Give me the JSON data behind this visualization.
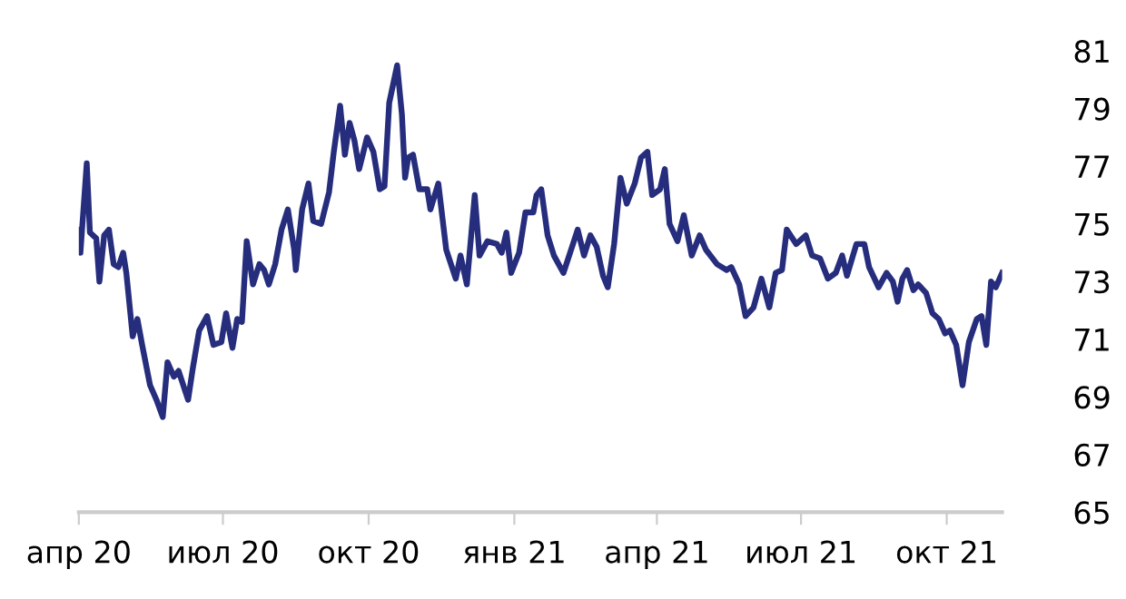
{
  "chart_data": {
    "type": "line",
    "x": [
      "2020-04-01",
      "2020-04-02",
      "2020-04-06",
      "2020-04-08",
      "2020-04-12",
      "2020-04-14",
      "2020-04-17",
      "2020-04-20",
      "2020-04-23",
      "2020-04-26",
      "2020-04-29",
      "2020-05-01",
      "2020-05-05",
      "2020-05-08",
      "2020-05-11",
      "2020-05-16",
      "2020-05-20",
      "2020-05-24",
      "2020-05-27",
      "2020-05-31",
      "2020-06-03",
      "2020-06-09",
      "2020-06-12",
      "2020-06-16",
      "2020-06-21",
      "2020-06-25",
      "2020-06-30",
      "2020-07-03",
      "2020-07-07",
      "2020-07-10",
      "2020-07-13",
      "2020-07-16",
      "2020-07-20",
      "2020-07-24",
      "2020-07-27",
      "2020-07-30",
      "2020-08-03",
      "2020-08-07",
      "2020-08-11",
      "2020-08-15",
      "2020-08-16",
      "2020-08-20",
      "2020-08-24",
      "2020-08-27",
      "2020-09-01",
      "2020-09-06",
      "2020-09-09",
      "2020-09-13",
      "2020-09-16",
      "2020-09-19",
      "2020-09-22",
      "2020-09-25",
      "2020-09-30",
      "2020-10-04",
      "2020-10-08",
      "2020-10-11",
      "2020-10-14",
      "2020-10-19",
      "2020-10-22",
      "2020-10-24",
      "2020-10-26",
      "2020-10-29",
      "2020-11-02",
      "2020-11-07",
      "2020-11-09",
      "2020-11-14",
      "2020-11-19",
      "2020-11-25",
      "2020-11-28",
      "2020-12-02",
      "2020-12-07",
      "2020-12-10",
      "2020-12-15",
      "2020-12-21",
      "2020-12-24",
      "2020-12-27",
      "2020-12-30",
      "2021-01-04",
      "2021-01-08",
      "2021-01-13",
      "2021-01-15",
      "2021-01-18",
      "2021-01-22",
      "2021-01-26",
      "2021-02-01",
      "2021-02-07",
      "2021-02-10",
      "2021-02-14",
      "2021-02-18",
      "2021-02-22",
      "2021-02-26",
      "2021-03-01",
      "2021-03-05",
      "2021-03-09",
      "2021-03-13",
      "2021-03-18",
      "2021-03-22",
      "2021-03-26",
      "2021-03-29",
      "2021-04-03",
      "2021-04-06",
      "2021-04-09",
      "2021-04-14",
      "2021-04-18",
      "2021-04-23",
      "2021-04-28",
      "2021-05-02",
      "2021-05-09",
      "2021-05-15",
      "2021-05-18",
      "2021-05-23",
      "2021-05-27",
      "2021-06-01",
      "2021-06-06",
      "2021-06-11",
      "2021-06-15",
      "2021-06-19",
      "2021-06-22",
      "2021-06-28",
      "2021-07-04",
      "2021-07-08",
      "2021-07-13",
      "2021-07-18",
      "2021-07-23",
      "2021-07-27",
      "2021-07-30",
      "2021-08-05",
      "2021-08-10",
      "2021-08-13",
      "2021-08-19",
      "2021-08-24",
      "2021-08-28",
      "2021-08-31",
      "2021-09-03",
      "2021-09-06",
      "2021-09-10",
      "2021-09-13",
      "2021-09-18",
      "2021-09-22",
      "2021-09-26",
      "2021-09-30",
      "2021-10-03",
      "2021-10-07",
      "2021-10-11",
      "2021-10-15",
      "2021-10-20",
      "2021-10-23",
      "2021-10-26",
      "2021-10-29",
      "2021-11-01",
      "2021-11-05"
    ],
    "series": [
      {
        "color": "#262d7d",
        "values": [
          74.8,
          74.0,
          77.1,
          74.7,
          74.5,
          73.0,
          74.6,
          74.8,
          73.6,
          73.5,
          74.0,
          73.3,
          71.1,
          71.7,
          70.8,
          69.4,
          68.9,
          68.3,
          70.2,
          69.7,
          69.9,
          68.9,
          70.0,
          71.3,
          71.8,
          70.8,
          70.9,
          71.9,
          70.7,
          71.7,
          71.6,
          74.4,
          72.9,
          73.6,
          73.4,
          72.9,
          73.6,
          74.8,
          75.5,
          74.1,
          73.4,
          75.5,
          76.4,
          75.1,
          75.0,
          76.1,
          77.5,
          79.1,
          77.4,
          78.5,
          77.9,
          76.9,
          78.0,
          77.5,
          76.2,
          76.3,
          79.2,
          80.5,
          78.8,
          76.6,
          77.3,
          77.4,
          76.2,
          76.2,
          75.5,
          76.4,
          74.1,
          73.1,
          73.9,
          72.9,
          76.0,
          73.9,
          74.4,
          74.3,
          74.0,
          74.7,
          73.3,
          74.0,
          75.4,
          75.4,
          76.0,
          76.2,
          74.6,
          73.9,
          73.3,
          74.3,
          74.8,
          73.9,
          74.6,
          74.2,
          73.2,
          72.8,
          74.3,
          76.6,
          75.7,
          76.4,
          77.3,
          77.5,
          76.0,
          76.2,
          76.9,
          75.0,
          74.4,
          75.3,
          73.9,
          74.6,
          74.1,
          73.6,
          73.4,
          73.5,
          72.9,
          71.8,
          72.1,
          73.1,
          72.1,
          73.3,
          73.4,
          74.8,
          74.3,
          74.6,
          73.9,
          73.8,
          73.1,
          73.3,
          73.9,
          73.2,
          74.3,
          74.3,
          73.5,
          72.8,
          73.3,
          73.0,
          72.3,
          73.1,
          73.4,
          72.7,
          72.9,
          72.6,
          71.9,
          71.7,
          71.2,
          71.3,
          70.8,
          69.4,
          70.9,
          71.7,
          71.8,
          70.8,
          73.0,
          72.8,
          73.3
        ]
      }
    ],
    "xlim": [
      "2020-04-01",
      "2021-11-05"
    ],
    "xticks": [
      {
        "value": "2020-04-01",
        "label": "апр 20"
      },
      {
        "value": "2020-07-01",
        "label": "июл 20"
      },
      {
        "value": "2020-10-01",
        "label": "окт 20"
      },
      {
        "value": "2021-01-01",
        "label": "янв 21"
      },
      {
        "value": "2021-04-01",
        "label": "апр 21"
      },
      {
        "value": "2021-07-01",
        "label": "июл 21"
      },
      {
        "value": "2021-10-01",
        "label": "окт 21"
      }
    ],
    "ylim": [
      65,
      81
    ],
    "yticks": [
      65,
      67,
      69,
      71,
      73,
      75,
      77,
      79,
      81
    ],
    "grid": false,
    "legend": false,
    "marker": "none",
    "line_style": "solid"
  }
}
